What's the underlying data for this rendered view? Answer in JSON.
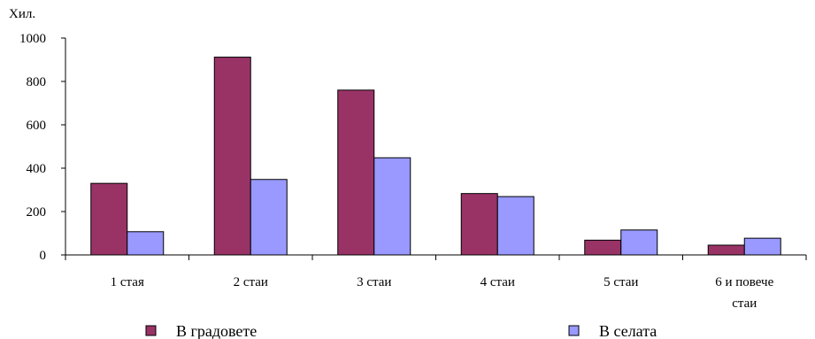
{
  "chart_data": {
    "type": "bar",
    "title": "",
    "ylabel": "Хил.",
    "xlabel": "",
    "ylim": [
      0,
      1000
    ],
    "yticks": [
      0,
      200,
      400,
      600,
      800,
      1000
    ],
    "grid": false,
    "legend_position": "bottom",
    "categories": [
      [
        "1 стая"
      ],
      [
        "2 стаи"
      ],
      [
        "3 стаи"
      ],
      [
        "4 стаи"
      ],
      [
        "5 стаи"
      ],
      [
        "6 и повече",
        "стаи"
      ]
    ],
    "series": [
      {
        "name": "В градовете",
        "color": "#993366",
        "values": [
          330,
          912,
          760,
          283,
          68,
          45
        ]
      },
      {
        "name": "В селата",
        "color": "#9999ff",
        "values": [
          107,
          348,
          448,
          269,
          115,
          77
        ]
      }
    ]
  }
}
